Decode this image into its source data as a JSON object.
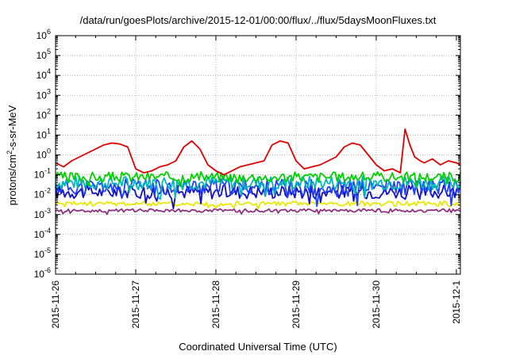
{
  "chart_data": {
    "type": "line",
    "title": "/data/run/goesPlots/archive/2015-12-01/00:00/flux/../flux/5daysMoonFluxes.txt",
    "xlabel": "Coordinated Universal Time (UTC)",
    "ylabel_parts": {
      "pre": "protons/cm",
      "sup": "2",
      "post": "-s-sr-MeV"
    },
    "yscale": "log",
    "ylim_exp": [
      -6,
      6
    ],
    "ytick_base": "10",
    "yticks_exp": [
      "-6",
      "-5",
      "-4",
      "-3",
      "-2",
      "-1",
      "0",
      "1",
      "2",
      "3",
      "4",
      "5",
      "6"
    ],
    "xlim_days": [
      0,
      5.05
    ],
    "xticks": [
      {
        "day": 0,
        "label": "2015-11-26"
      },
      {
        "day": 1,
        "label": "2015-11-27"
      },
      {
        "day": 2,
        "label": "2015-11-28"
      },
      {
        "day": 3,
        "label": "2015-11-29"
      },
      {
        "day": 4,
        "label": "2015-11-30"
      },
      {
        "day": 5,
        "label": "2015-12-1"
      }
    ],
    "grid": true,
    "legend": "none",
    "series": [
      {
        "color": "#e00000",
        "x_days": [
          0,
          0.1,
          0.2,
          0.3,
          0.4,
          0.5,
          0.6,
          0.7,
          0.8,
          0.9,
          1.0,
          1.1,
          1.2,
          1.3,
          1.4,
          1.5,
          1.6,
          1.7,
          1.8,
          1.9,
          2.0,
          2.1,
          2.2,
          2.3,
          2.4,
          2.5,
          2.6,
          2.7,
          2.8,
          2.9,
          3.0,
          3.1,
          3.2,
          3.3,
          3.4,
          3.5,
          3.6,
          3.7,
          3.8,
          3.9,
          4.0,
          4.1,
          4.2,
          4.3,
          4.36,
          4.42,
          4.48,
          4.55,
          4.6,
          4.7,
          4.8,
          4.9,
          5.0,
          5.05
        ],
        "log10_values": [
          -0.4,
          -0.6,
          -0.3,
          -0.1,
          0.1,
          0.3,
          0.5,
          0.6,
          0.55,
          0.4,
          -0.7,
          -0.9,
          -0.8,
          -0.6,
          -0.5,
          -0.3,
          0.4,
          0.7,
          0.3,
          -0.5,
          -0.8,
          -1.0,
          -0.8,
          -0.6,
          -0.5,
          -0.4,
          -0.3,
          0.5,
          0.7,
          0.6,
          -0.3,
          -0.7,
          -0.6,
          -0.5,
          -0.3,
          -0.1,
          0.4,
          0.6,
          0.5,
          0.0,
          -0.5,
          -0.8,
          -0.7,
          -0.9,
          1.3,
          0.5,
          -0.1,
          -0.3,
          -0.4,
          -0.2,
          -0.5,
          -0.3,
          -0.4,
          -0.5
        ]
      },
      {
        "color": "#00d000",
        "base": -1.1,
        "amp": 0.25,
        "seed": 3
      },
      {
        "color": "#00b8b8",
        "base": -1.4,
        "amp": 0.35,
        "seed": 7
      },
      {
        "color": "#2040ff",
        "base": -1.6,
        "amp": 0.4,
        "seed": 11
      },
      {
        "color": "#1010c0",
        "base": -1.85,
        "amp": 0.35,
        "seed": 17
      },
      {
        "color": "#e8e800",
        "base": -2.45,
        "amp": 0.12,
        "seed": 23
      },
      {
        "color": "#903080",
        "base": -2.8,
        "amp": 0.08,
        "seed": 29
      }
    ]
  }
}
